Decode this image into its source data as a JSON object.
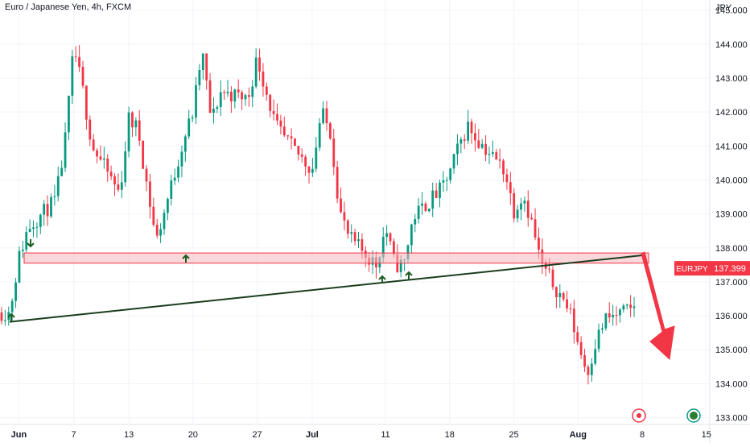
{
  "header": {
    "symbol_title": "Euro / Japanese Yen, 4h, FXCM"
  },
  "price_axis": {
    "unit": "JPY",
    "tick_labels": [
      "145.000",
      "144.000",
      "143.000",
      "142.000",
      "141.000",
      "140.000",
      "139.000",
      "138.000",
      "137.000",
      "136.000",
      "135.000",
      "134.000",
      "133.000"
    ]
  },
  "time_axis": {
    "tick_labels": [
      "Jun",
      "7",
      "13",
      "20",
      "27",
      "Jul",
      "11",
      "18",
      "25",
      "Aug",
      "8",
      "15"
    ]
  },
  "last_price_tag": {
    "symbol": "EURJPY",
    "price": "137.399",
    "color": "#f23645"
  },
  "colors": {
    "up": "#089981",
    "down": "#f23645",
    "zone_fill": "#f6b7bd",
    "zone_stroke": "#f23645",
    "trendline": "#1b3d1e",
    "arrow_marker": "#1b5e20",
    "forecast_arrow": "#f23645",
    "grid": "#f0f3fa"
  },
  "event_icons": [
    "economic-event-icon",
    "dividend-earnings-icon"
  ],
  "chart_data": {
    "type": "candlestick",
    "title": "Euro / Japanese Yen, 4h, FXCM",
    "ylabel": "JPY",
    "ylim": [
      132.8,
      145.3
    ],
    "x": [
      "2023-05-31",
      "2023-06-01",
      "2023-06-02",
      "2023-06-05",
      "2023-06-06",
      "2023-06-07",
      "2023-06-08",
      "2023-06-09",
      "2023-06-12",
      "2023-06-13",
      "2023-06-14",
      "2023-06-15",
      "2023-06-16",
      "2023-06-19",
      "2023-06-20",
      "2023-06-21",
      "2023-06-22",
      "2023-06-23",
      "2023-06-26",
      "2023-06-27",
      "2023-06-28",
      "2023-06-29",
      "2023-06-30",
      "2023-07-03",
      "2023-07-04",
      "2023-07-05",
      "2023-07-06",
      "2023-07-07",
      "2023-07-10",
      "2023-07-11",
      "2023-07-12",
      "2023-07-13",
      "2023-07-14",
      "2023-07-17",
      "2023-07-18",
      "2023-07-19",
      "2023-07-20",
      "2023-07-21",
      "2023-07-24",
      "2023-07-25",
      "2023-07-26",
      "2023-07-27",
      "2023-07-28",
      "2023-07-31",
      "2023-08-01",
      "2023-08-02",
      "2023-08-03",
      "2023-08-04",
      "2023-08-07",
      "2023-08-08"
    ],
    "close": [
      136.1,
      137.7,
      138.6,
      139.4,
      141.0,
      143.9,
      142.6,
      141.0,
      139.6,
      141.8,
      141.5,
      139.8,
      138.2,
      141.2,
      142.0,
      143.8,
      141.7,
      142.6,
      142.4,
      143.6,
      142.6,
      141.6,
      141.2,
      140.3,
      142.0,
      141.4,
      139.1,
      138.3,
      137.5,
      138.6,
      137.5,
      137.5,
      138.9,
      139.7,
      140.2,
      141.0,
      141.6,
      141.2,
      140.3,
      139.1,
      139.6,
      138.7,
      137.5,
      136.2,
      135.2,
      134.3,
      135.3,
      135.9,
      136.2,
      137.399
    ],
    "support_resistance_zone": {
      "low": 137.55,
      "high": 137.85
    },
    "trendline": [
      [
        "2023-05-31",
        135.82
      ],
      [
        "2023-08-08",
        137.78
      ]
    ],
    "annotations": [
      "touch arrows at support",
      "downward forecast arrow"
    ]
  }
}
